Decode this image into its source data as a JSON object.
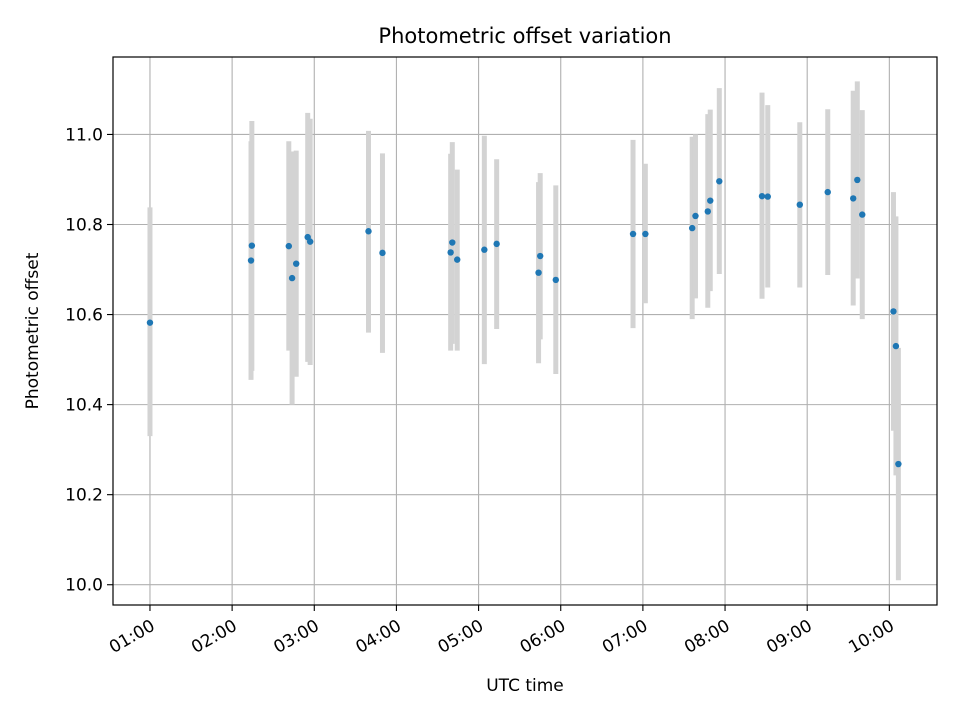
{
  "chart_data": {
    "type": "scatter",
    "title": "Photometric offset variation",
    "xlabel": "UTC time",
    "ylabel": "Photometric offset",
    "grid": true,
    "xlim_hours": [
      0.55,
      10.58
    ],
    "ylim": [
      9.955,
      11.172
    ],
    "xticks": [
      {
        "hour": 1,
        "label": "01:00"
      },
      {
        "hour": 2,
        "label": "02:00"
      },
      {
        "hour": 3,
        "label": "03:00"
      },
      {
        "hour": 4,
        "label": "04:00"
      },
      {
        "hour": 5,
        "label": "05:00"
      },
      {
        "hour": 6,
        "label": "06:00"
      },
      {
        "hour": 7,
        "label": "07:00"
      },
      {
        "hour": 8,
        "label": "08:00"
      },
      {
        "hour": 9,
        "label": "09:00"
      },
      {
        "hour": 10,
        "label": "10:00"
      }
    ],
    "yticks": [
      {
        "value": 10.0,
        "label": "10.0"
      },
      {
        "value": 10.2,
        "label": "10.2"
      },
      {
        "value": 10.4,
        "label": "10.4"
      },
      {
        "value": 10.6,
        "label": "10.6"
      },
      {
        "value": 10.8,
        "label": "10.8"
      },
      {
        "value": 11.0,
        "label": "11.0"
      }
    ],
    "colors": {
      "point": "#1f77b4",
      "errorbar": "#d3d3d3",
      "grid": "#b0b0b0",
      "axis": "#000000"
    },
    "points": [
      {
        "t": 1.0,
        "y": 10.582,
        "lo": 10.33,
        "hi": 10.838
      },
      {
        "t": 2.23,
        "y": 10.72,
        "lo": 10.455,
        "hi": 10.985
      },
      {
        "t": 2.24,
        "y": 10.753,
        "lo": 10.475,
        "hi": 11.03
      },
      {
        "t": 2.69,
        "y": 10.752,
        "lo": 10.52,
        "hi": 10.985
      },
      {
        "t": 2.73,
        "y": 10.681,
        "lo": 10.4,
        "hi": 10.962
      },
      {
        "t": 2.78,
        "y": 10.713,
        "lo": 10.462,
        "hi": 10.964
      },
      {
        "t": 2.92,
        "y": 10.772,
        "lo": 10.495,
        "hi": 11.048
      },
      {
        "t": 2.95,
        "y": 10.762,
        "lo": 10.488,
        "hi": 11.035
      },
      {
        "t": 3.66,
        "y": 10.785,
        "lo": 10.56,
        "hi": 11.008
      },
      {
        "t": 3.83,
        "y": 10.737,
        "lo": 10.515,
        "hi": 10.958
      },
      {
        "t": 4.66,
        "y": 10.738,
        "lo": 10.52,
        "hi": 10.957
      },
      {
        "t": 4.68,
        "y": 10.76,
        "lo": 10.535,
        "hi": 10.983
      },
      {
        "t": 4.74,
        "y": 10.722,
        "lo": 10.52,
        "hi": 10.922
      },
      {
        "t": 5.07,
        "y": 10.744,
        "lo": 10.49,
        "hi": 10.997
      },
      {
        "t": 5.22,
        "y": 10.757,
        "lo": 10.568,
        "hi": 10.945
      },
      {
        "t": 5.73,
        "y": 10.693,
        "lo": 10.492,
        "hi": 10.894
      },
      {
        "t": 5.75,
        "y": 10.73,
        "lo": 10.545,
        "hi": 10.914
      },
      {
        "t": 5.94,
        "y": 10.677,
        "lo": 10.468,
        "hi": 10.887
      },
      {
        "t": 6.88,
        "y": 10.779,
        "lo": 10.57,
        "hi": 10.988
      },
      {
        "t": 7.03,
        "y": 10.779,
        "lo": 10.625,
        "hi": 10.935
      },
      {
        "t": 7.6,
        "y": 10.792,
        "lo": 10.59,
        "hi": 10.995
      },
      {
        "t": 7.64,
        "y": 10.819,
        "lo": 10.636,
        "hi": 11.0
      },
      {
        "t": 7.79,
        "y": 10.829,
        "lo": 10.615,
        "hi": 11.045
      },
      {
        "t": 7.82,
        "y": 10.853,
        "lo": 10.652,
        "hi": 11.055
      },
      {
        "t": 7.93,
        "y": 10.896,
        "lo": 10.69,
        "hi": 11.103
      },
      {
        "t": 8.45,
        "y": 10.863,
        "lo": 10.635,
        "hi": 11.093
      },
      {
        "t": 8.52,
        "y": 10.862,
        "lo": 10.66,
        "hi": 11.065
      },
      {
        "t": 8.91,
        "y": 10.844,
        "lo": 10.66,
        "hi": 11.027
      },
      {
        "t": 9.25,
        "y": 10.872,
        "lo": 10.688,
        "hi": 11.056
      },
      {
        "t": 9.56,
        "y": 10.858,
        "lo": 10.62,
        "hi": 11.097
      },
      {
        "t": 9.61,
        "y": 10.899,
        "lo": 10.68,
        "hi": 11.118
      },
      {
        "t": 9.67,
        "y": 10.822,
        "lo": 10.59,
        "hi": 11.054
      },
      {
        "t": 10.05,
        "y": 10.607,
        "lo": 10.342,
        "hi": 10.872
      },
      {
        "t": 10.08,
        "y": 10.53,
        "lo": 10.243,
        "hi": 10.818
      },
      {
        "t": 10.11,
        "y": 10.268,
        "lo": 10.01,
        "hi": 10.526
      }
    ]
  }
}
